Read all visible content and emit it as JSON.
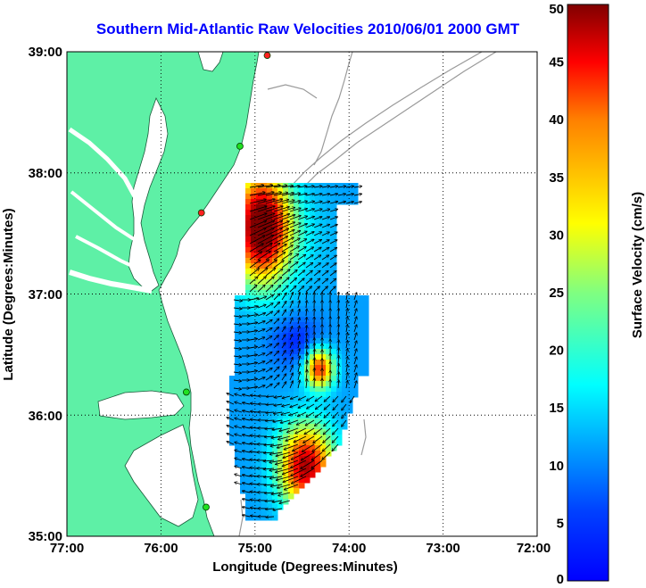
{
  "title": "Southern Mid-Atlantic Raw Velocities 2010/06/01 2000 GMT",
  "x_axis": {
    "label": "Longitude (Degrees:Minutes)",
    "ticks": [
      "77:00",
      "76:00",
      "75:00",
      "74:00",
      "73:00",
      "72:00"
    ]
  },
  "y_axis": {
    "label": "Latitude (Degrees:Minutes)",
    "ticks": [
      "39:00",
      "38:00",
      "37:00",
      "36:00",
      "35:00"
    ]
  },
  "colorbar": {
    "label": "Surface Velocity (cm/s)",
    "ticks": [
      "50",
      "45",
      "40",
      "35",
      "30",
      "25",
      "20",
      "15",
      "10",
      "5",
      "0"
    ],
    "min": 0,
    "max": 50,
    "colormap": "jet"
  },
  "map": {
    "extent": {
      "lon": [
        -77,
        -72
      ],
      "lat": [
        35,
        39
      ]
    },
    "land_color": "#5ef0a6",
    "grid": "dotted",
    "contour_color": "#9a9a9a",
    "site_markers": [
      {
        "lon": -74.87,
        "lat": 38.97,
        "status": "red"
      },
      {
        "lon": -75.16,
        "lat": 38.22,
        "status": "green"
      },
      {
        "lon": -75.57,
        "lat": 37.67,
        "status": "red"
      },
      {
        "lon": -75.73,
        "lat": 36.19,
        "status": "green"
      },
      {
        "lon": -75.52,
        "lat": 35.24,
        "status": "green"
      }
    ]
  }
}
